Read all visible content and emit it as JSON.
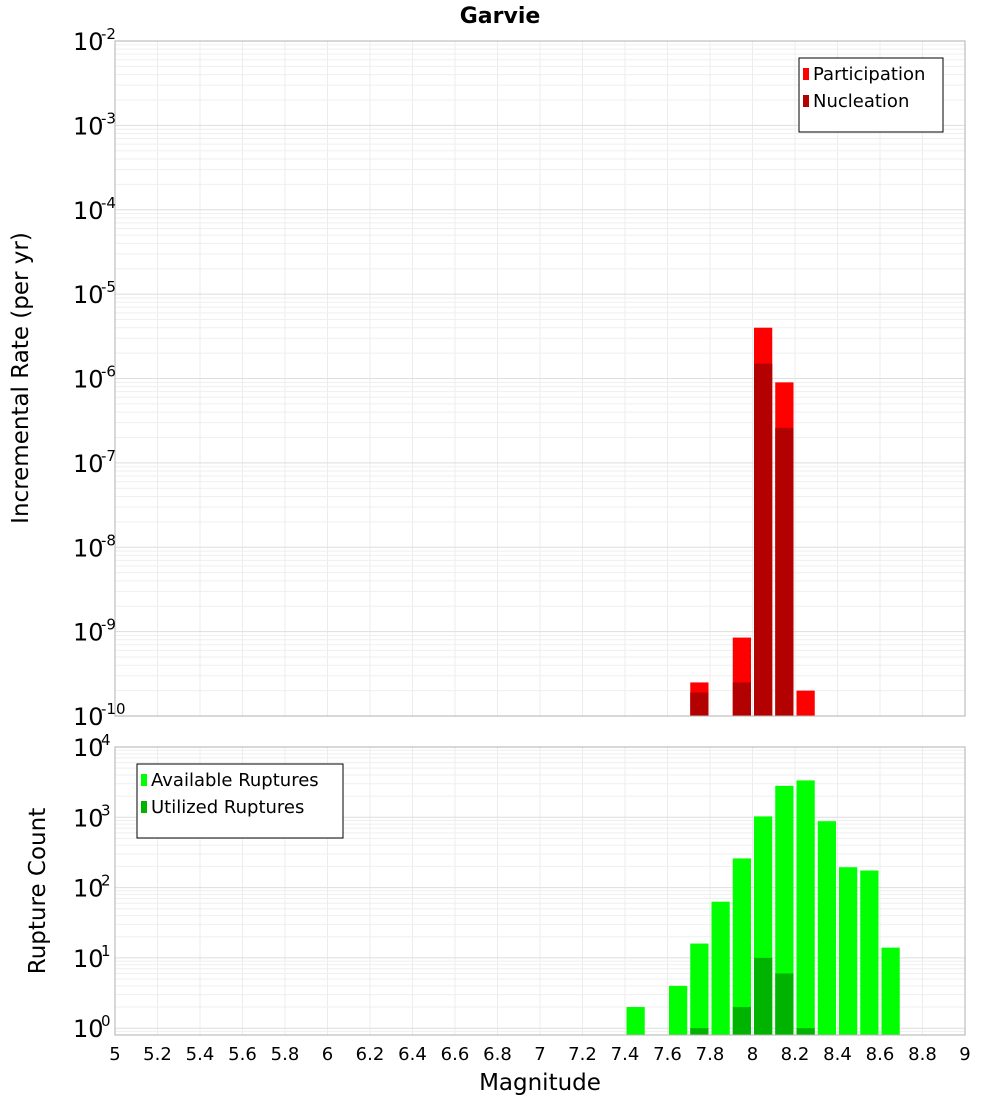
{
  "title": "Garvie",
  "xlabel": "Magnitude",
  "x_ticks": [
    "5",
    "5.2",
    "5.4",
    "5.6",
    "5.8",
    "6",
    "6.2",
    "6.4",
    "6.6",
    "6.8",
    "7",
    "7.2",
    "7.4",
    "7.6",
    "7.8",
    "8",
    "8.2",
    "8.4",
    "8.6",
    "8.8",
    "9"
  ],
  "top_panel": {
    "ylabel": "Incremental Rate (per yr)",
    "ytick_base": "10",
    "ytick_exponents": [
      "-10",
      "-9",
      "-8",
      "-7",
      "-6",
      "-5",
      "-4",
      "-3",
      "-2"
    ],
    "legend": [
      {
        "label": "Participation",
        "color": "#ff0000"
      },
      {
        "label": "Nucleation",
        "color": "#b30000"
      }
    ]
  },
  "bottom_panel": {
    "ylabel": "Rupture Count",
    "ytick_base": "10",
    "ytick_exponents": [
      "0",
      "1",
      "2",
      "3",
      "4"
    ],
    "legend": [
      {
        "label": "Available Ruptures",
        "color": "#00ff00"
      },
      {
        "label": "Utilized Ruptures",
        "color": "#00b300"
      }
    ]
  },
  "chart_data": [
    {
      "type": "bar",
      "title": "Garvie",
      "xlabel": "",
      "ylabel": "Incremental Rate (per yr)",
      "yscale": "log",
      "xlim": [
        5,
        9
      ],
      "ylim": [
        1e-10,
        0.01
      ],
      "grid": true,
      "legend_position": "top-right",
      "x": [
        7.75,
        7.95,
        8.05,
        8.15,
        8.25
      ],
      "series": [
        {
          "name": "Participation",
          "color": "#ff0000",
          "values": [
            2.5e-10,
            8.5e-10,
            4e-06,
            9e-07,
            2e-10
          ]
        },
        {
          "name": "Nucleation",
          "color": "#b30000",
          "values": [
            1.9e-10,
            2.5e-10,
            1.5e-06,
            2.6e-07,
            null
          ]
        }
      ]
    },
    {
      "type": "bar",
      "xlabel": "Magnitude",
      "ylabel": "Rupture Count",
      "yscale": "log",
      "xlim": [
        5,
        9
      ],
      "ylim": [
        0.8,
        10000
      ],
      "grid": true,
      "legend_position": "top-left",
      "x": [
        7.45,
        7.65,
        7.75,
        7.85,
        7.95,
        8.05,
        8.15,
        8.25,
        8.35,
        8.45,
        8.55,
        8.65
      ],
      "series": [
        {
          "name": "Available Ruptures",
          "color": "#00ff00",
          "values": [
            2,
            4,
            16,
            63,
            260,
            1030,
            2800,
            3350,
            880,
            195,
            175,
            14
          ]
        },
        {
          "name": "Utilized Ruptures",
          "color": "#00b300",
          "values": [
            null,
            null,
            1,
            null,
            2,
            10,
            6,
            1,
            null,
            null,
            null,
            null
          ]
        }
      ]
    }
  ]
}
